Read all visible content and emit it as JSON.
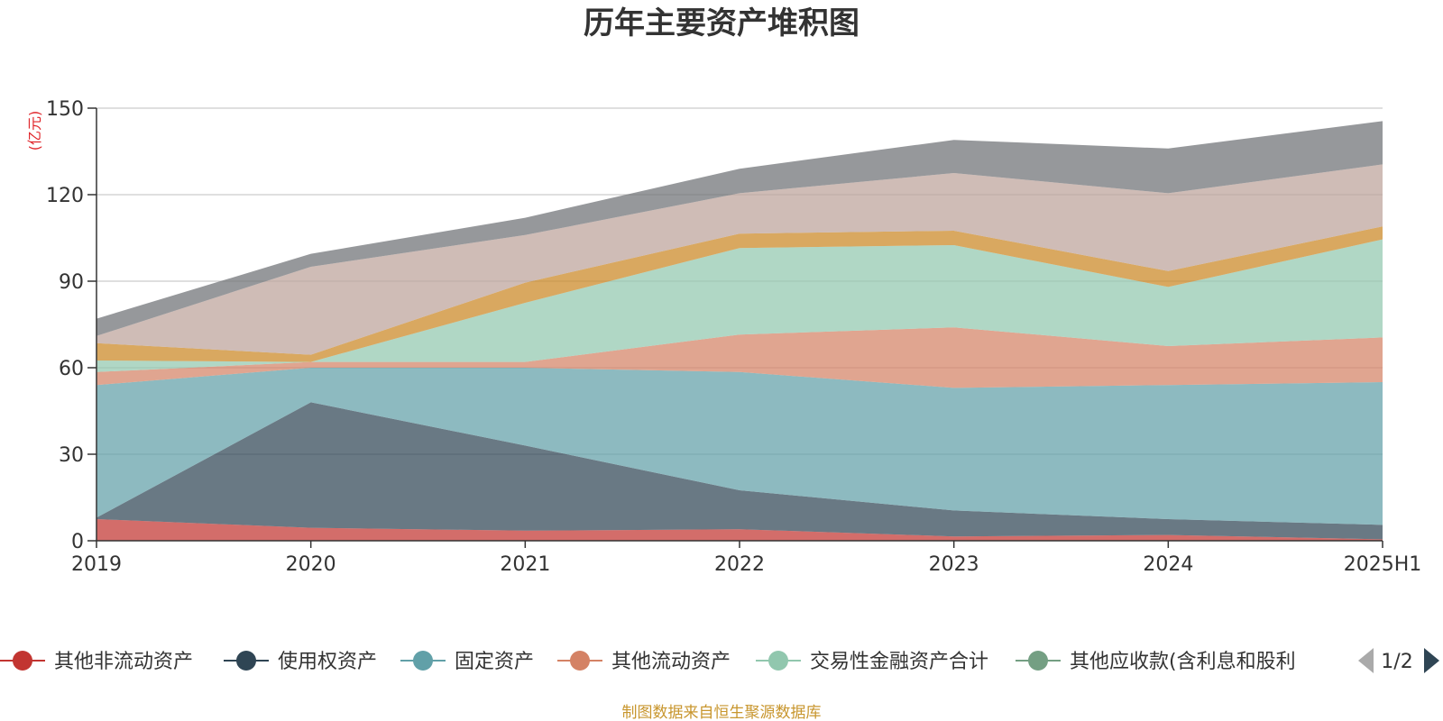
{
  "chart_data": {
    "type": "area",
    "title": "历年主要资产堆积图",
    "unit_label": "(亿元)",
    "x": [
      "2019",
      "2020",
      "2021",
      "2022",
      "2023",
      "2024",
      "2025H1"
    ],
    "y_ticks": [
      0,
      30,
      60,
      90,
      120,
      150
    ],
    "ylim": [
      0,
      150
    ],
    "grid": true,
    "stacked": true,
    "series": [
      {
        "name": "其他非流动资产",
        "color": "#c23531",
        "values": [
          7.5,
          4.5,
          3.5,
          4,
          1.5,
          2,
          0.5
        ]
      },
      {
        "name": "使用权资产",
        "color": "#2f4554",
        "values": [
          0.5,
          43.5,
          29.5,
          13.5,
          9,
          5.5,
          5
        ]
      },
      {
        "name": "固定资产",
        "color": "#61a0a8",
        "values": [
          46,
          12,
          27,
          41,
          42.5,
          46.5,
          49.5
        ]
      },
      {
        "name": "其他流动资产",
        "color": "#d48265",
        "values": [
          4.5,
          2,
          2,
          13,
          21,
          13.5,
          15.5
        ]
      },
      {
        "name": "交易性金融资产合计",
        "color": "#91c7ae",
        "values": [
          4,
          0,
          20.5,
          30,
          28.5,
          20.5,
          34
        ]
      },
      {
        "name": "其他应收款(含利息和股利",
        "color": "#749f83",
        "values": [
          0,
          0,
          0,
          0,
          0,
          0,
          0
        ]
      },
      {
        "name": "",
        "color": "#ca8622",
        "values": [
          6,
          2.5,
          7,
          5,
          5,
          5.5,
          4.5
        ]
      },
      {
        "name": "",
        "color": "#bda29a",
        "values": [
          2.5,
          30.5,
          16.5,
          14,
          20,
          27,
          21.5
        ]
      },
      {
        "name": "",
        "color": "#6e7074",
        "values": [
          6,
          4.5,
          6,
          8.5,
          11.5,
          15.5,
          15
        ]
      }
    ]
  },
  "legend": {
    "page_indicator": "1/2"
  },
  "source_note": "制图数据来自恒生聚源数据库"
}
